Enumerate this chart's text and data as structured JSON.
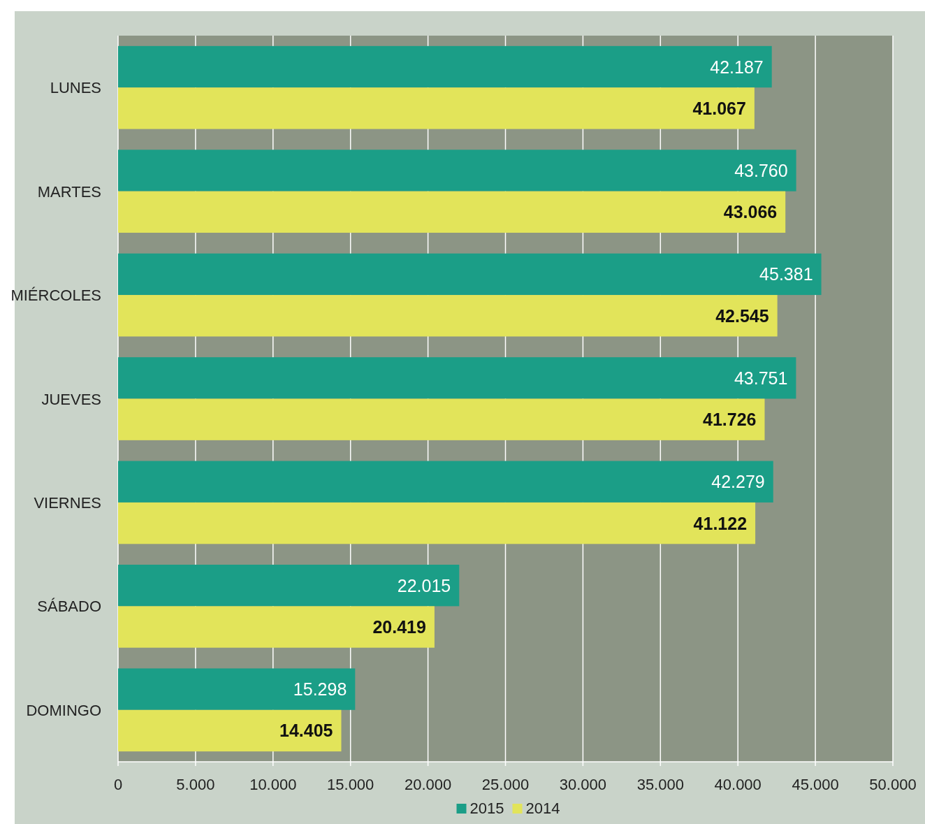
{
  "chart_data": {
    "type": "bar",
    "orientation": "horizontal",
    "categories": [
      "LUNES",
      "MARTES",
      "MIÉRCOLES",
      "JUEVES",
      "VIERNES",
      "SÁBADO",
      "DOMINGO"
    ],
    "series": [
      {
        "name": "2015",
        "color": "#1b9e87",
        "values": [
          42187,
          43760,
          45381,
          43751,
          42279,
          22015,
          15298
        ],
        "value_labels": [
          "42.187",
          "43.760",
          "45.381",
          "43.751",
          "42.279",
          "22.015",
          "15.298"
        ]
      },
      {
        "name": "2014",
        "color": "#e2e45a",
        "values": [
          41067,
          43066,
          42545,
          41726,
          41122,
          20419,
          14405
        ],
        "value_labels": [
          "41.067",
          "43.066",
          "42.545",
          "41.726",
          "41.122",
          "20.419",
          "14.405"
        ]
      }
    ],
    "xlim": [
      0,
      50000
    ],
    "xticks": [
      0,
      {
        "value": 5000,
        "label": "5.000"
      },
      {
        "value": 10000,
        "label": "10.000"
      },
      {
        "value": 15000,
        "label": "15.000"
      },
      {
        "value": 20000,
        "label": "20.000"
      },
      {
        "value": 25000,
        "label": "25.000"
      },
      {
        "value": 30000,
        "label": "30.000"
      },
      {
        "value": 35000,
        "label": "35.000"
      },
      {
        "value": 40000,
        "label": "40.000"
      },
      {
        "value": 45000,
        "label": "45.000"
      },
      {
        "value": 50000,
        "label": "50.000"
      }
    ],
    "grid": "x",
    "legend": "bottom"
  }
}
